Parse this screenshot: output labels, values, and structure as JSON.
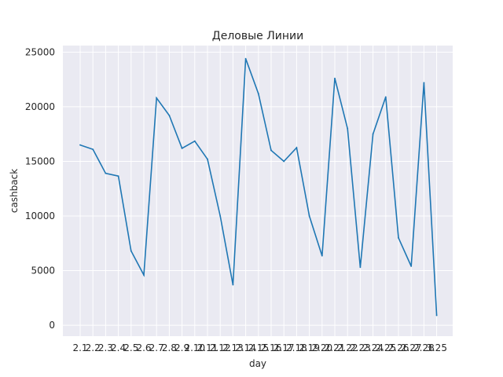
{
  "chart_data": {
    "type": "line",
    "title": "Деловые Линии",
    "xlabel": "day",
    "ylabel": "cashback",
    "ylim": [
      -1000,
      25600
    ],
    "yticks": [
      0,
      5000,
      10000,
      15000,
      20000,
      25000
    ],
    "grid": true,
    "legend": "none",
    "colors": {
      "background": "#eaeaf2",
      "grid": "#ffffff",
      "line": "#1f77b4",
      "text": "#262626"
    },
    "categories": [
      "2.1",
      "2.2",
      "2.3",
      "2.4",
      "2.5",
      "2.6",
      "2.7",
      "2.8",
      "2.9",
      "2.10",
      "2.11",
      "2.12",
      "2.13",
      "2.14",
      "2.15",
      "2.16",
      "2.17",
      "2.18",
      "2.19",
      "2.20",
      "2.21",
      "2.22",
      "2.23",
      "2.24",
      "2.25",
      "2.26",
      "2.27",
      "2.28",
      "3.25"
    ],
    "series": [
      {
        "values": [
          16500,
          16100,
          13900,
          13650,
          6800,
          4600,
          20800,
          19200,
          16200,
          16850,
          15200,
          10000,
          3700,
          24400,
          21200,
          16000,
          15000,
          16250,
          10000,
          6350,
          22600,
          18000,
          5300,
          17500,
          20900,
          8000,
          5400,
          22200,
          900
        ]
      }
    ]
  }
}
